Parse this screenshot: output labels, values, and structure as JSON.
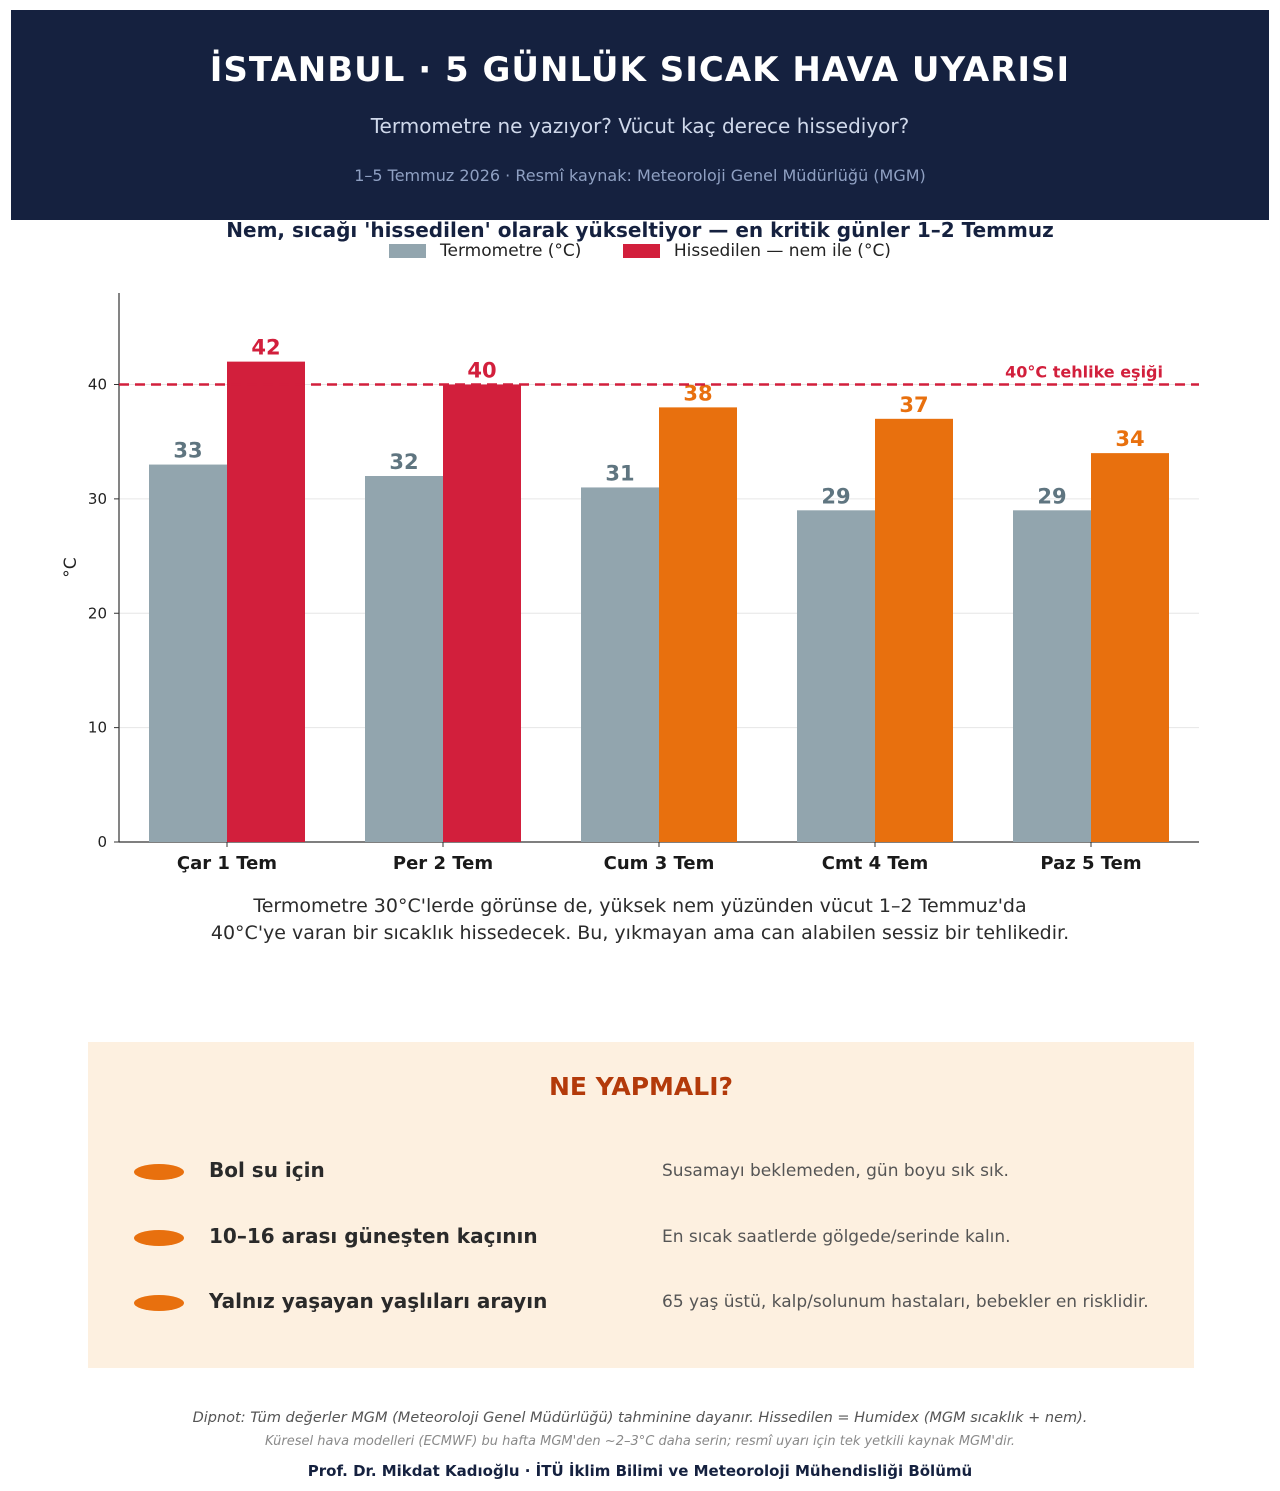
{
  "header": {
    "title": "İSTANBUL · 5 GÜNLÜK SICAK HAVA UYARISI",
    "subtitle": "Termometre ne yazıyor?  Vücut kaç derece hissediyor?",
    "meta": "1–5 Temmuz 2026  ·  Resmî kaynak: Meteoroloji Genel Müdürlüğü (MGM)"
  },
  "chart_data": {
    "type": "bar",
    "title": "Nem, sıcağı 'hissedilen' olarak yükseltiyor — en kritik günler 1–2 Temmuz",
    "ylabel": "°C",
    "ylim": [
      0,
      48
    ],
    "yticks": [
      0,
      10,
      20,
      30,
      40
    ],
    "grid": true,
    "legend_placement": "top",
    "categories": [
      "Çar 1 Tem",
      "Per 2 Tem",
      "Cum 3 Tem",
      "Cmt 4 Tem",
      "Paz 5 Tem"
    ],
    "series": [
      {
        "name": "Termometre (°C)",
        "values": [
          33,
          32,
          31,
          29,
          29
        ],
        "colors": [
          "#92a5ae",
          "#92a5ae",
          "#92a5ae",
          "#92a5ae",
          "#92a5ae"
        ],
        "label_color": "#5f7580"
      },
      {
        "name": "Hissedilen — nem ile (°C)",
        "values": [
          42,
          40,
          38,
          37,
          34
        ],
        "colors": [
          "#d21f3c",
          "#d21f3c",
          "#e8700e",
          "#e8700e",
          "#e8700e"
        ],
        "label_colors": [
          "#d21f3c",
          "#d21f3c",
          "#e8700e",
          "#e8700e",
          "#e8700e"
        ]
      }
    ],
    "threshold": {
      "value": 40,
      "label": "40°C tehlike eşiği",
      "color": "#d21f3c"
    }
  },
  "caption": {
    "line1": "Termometre 30°C'lerde görünse de, yüksek nem yüzünden vücut 1–2 Temmuz'da",
    "line2": "40°C'ye varan bir sıcaklık hissedecek. Bu, yıkmayan ama can alabilen sessiz bir tehlikedir."
  },
  "advice": {
    "title": "NE YAPMALI?",
    "items": [
      {
        "head": "Bol su için",
        "desc": "Susamayı beklemeden, gün boyu sık sık."
      },
      {
        "head": "10–16 arası güneşten kaçının",
        "desc": "En sıcak saatlerde gölgede/serinde kalın."
      },
      {
        "head": "Yalnız yaşayan yaşlıları arayın",
        "desc": "65 yaş üstü, kalp/solunum hastaları, bebekler en risklidir."
      }
    ]
  },
  "footer": {
    "note": "Dipnot: Tüm değerler MGM (Meteoroloji Genel Müdürlüğü) tahminine dayanır. Hissedilen = Humidex (MGM sıcaklık + nem).",
    "note2": "Küresel hava modelleri (ECMWF) bu hafta MGM'den ~2–3°C daha serin; resmî uyarı için tek yetkili kaynak MGM'dir.",
    "author": "Prof. Dr. Mikdat Kadıoğlu · İTÜ İklim Bilimi ve Meteoroloji Mühendisliği Bölümü"
  }
}
